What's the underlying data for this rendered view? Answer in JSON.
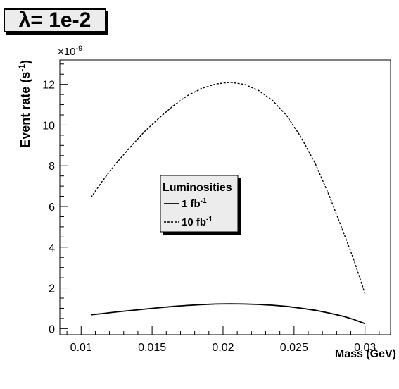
{
  "title": {
    "symbol": "λ",
    "text": "= 1e-2"
  },
  "chart_data": {
    "type": "line",
    "ylabel_main": "Event rate (s",
    "ylabel_sup": "-1",
    "ylabel_close": ")",
    "y_multiplier": "×10",
    "y_multiplier_exp": "-9",
    "xlabel": "Mass (GeV)",
    "xlim": [
      0.0085,
      0.0318
    ],
    "ylim": [
      -0.3,
      13.2
    ],
    "x_ticks": [
      "0.01",
      "0.015",
      "0.02",
      "0.025",
      "0.03"
    ],
    "y_ticks": [
      "0",
      "2",
      "4",
      "6",
      "8",
      "10",
      "12"
    ],
    "x_tick_values": [
      0.01,
      0.015,
      0.02,
      0.025,
      0.03
    ],
    "y_tick_values": [
      0,
      2,
      4,
      6,
      8,
      10,
      12
    ],
    "legend_title": "Luminosities",
    "legend_position": "center-left",
    "series": [
      {
        "name": "1 fb",
        "name_sup": "-1",
        "style": "solid",
        "x": [
          0.0107,
          0.0115,
          0.0125,
          0.0135,
          0.0145,
          0.0155,
          0.0165,
          0.0175,
          0.0185,
          0.0195,
          0.0205,
          0.0215,
          0.0225,
          0.0235,
          0.0245,
          0.0255,
          0.0265,
          0.0275,
          0.0285,
          0.0292,
          0.03
        ],
        "y": [
          0.68,
          0.74,
          0.82,
          0.89,
          0.96,
          1.03,
          1.09,
          1.14,
          1.18,
          1.21,
          1.22,
          1.21,
          1.19,
          1.15,
          1.09,
          1.0,
          0.9,
          0.76,
          0.6,
          0.45,
          0.24
        ]
      },
      {
        "name": "10 fb",
        "name_sup": "-1",
        "style": "dashed",
        "x": [
          0.0107,
          0.0115,
          0.0125,
          0.0135,
          0.0145,
          0.0155,
          0.0165,
          0.0175,
          0.0185,
          0.0195,
          0.0205,
          0.0215,
          0.0225,
          0.0235,
          0.0245,
          0.0255,
          0.0265,
          0.0275,
          0.0285,
          0.0292,
          0.03
        ],
        "y": [
          6.45,
          7.25,
          8.15,
          8.95,
          9.7,
          10.35,
          10.95,
          11.45,
          11.8,
          12.02,
          12.1,
          12.0,
          11.7,
          11.2,
          10.45,
          9.4,
          8.1,
          6.5,
          4.7,
          3.4,
          1.72
        ]
      }
    ]
  }
}
